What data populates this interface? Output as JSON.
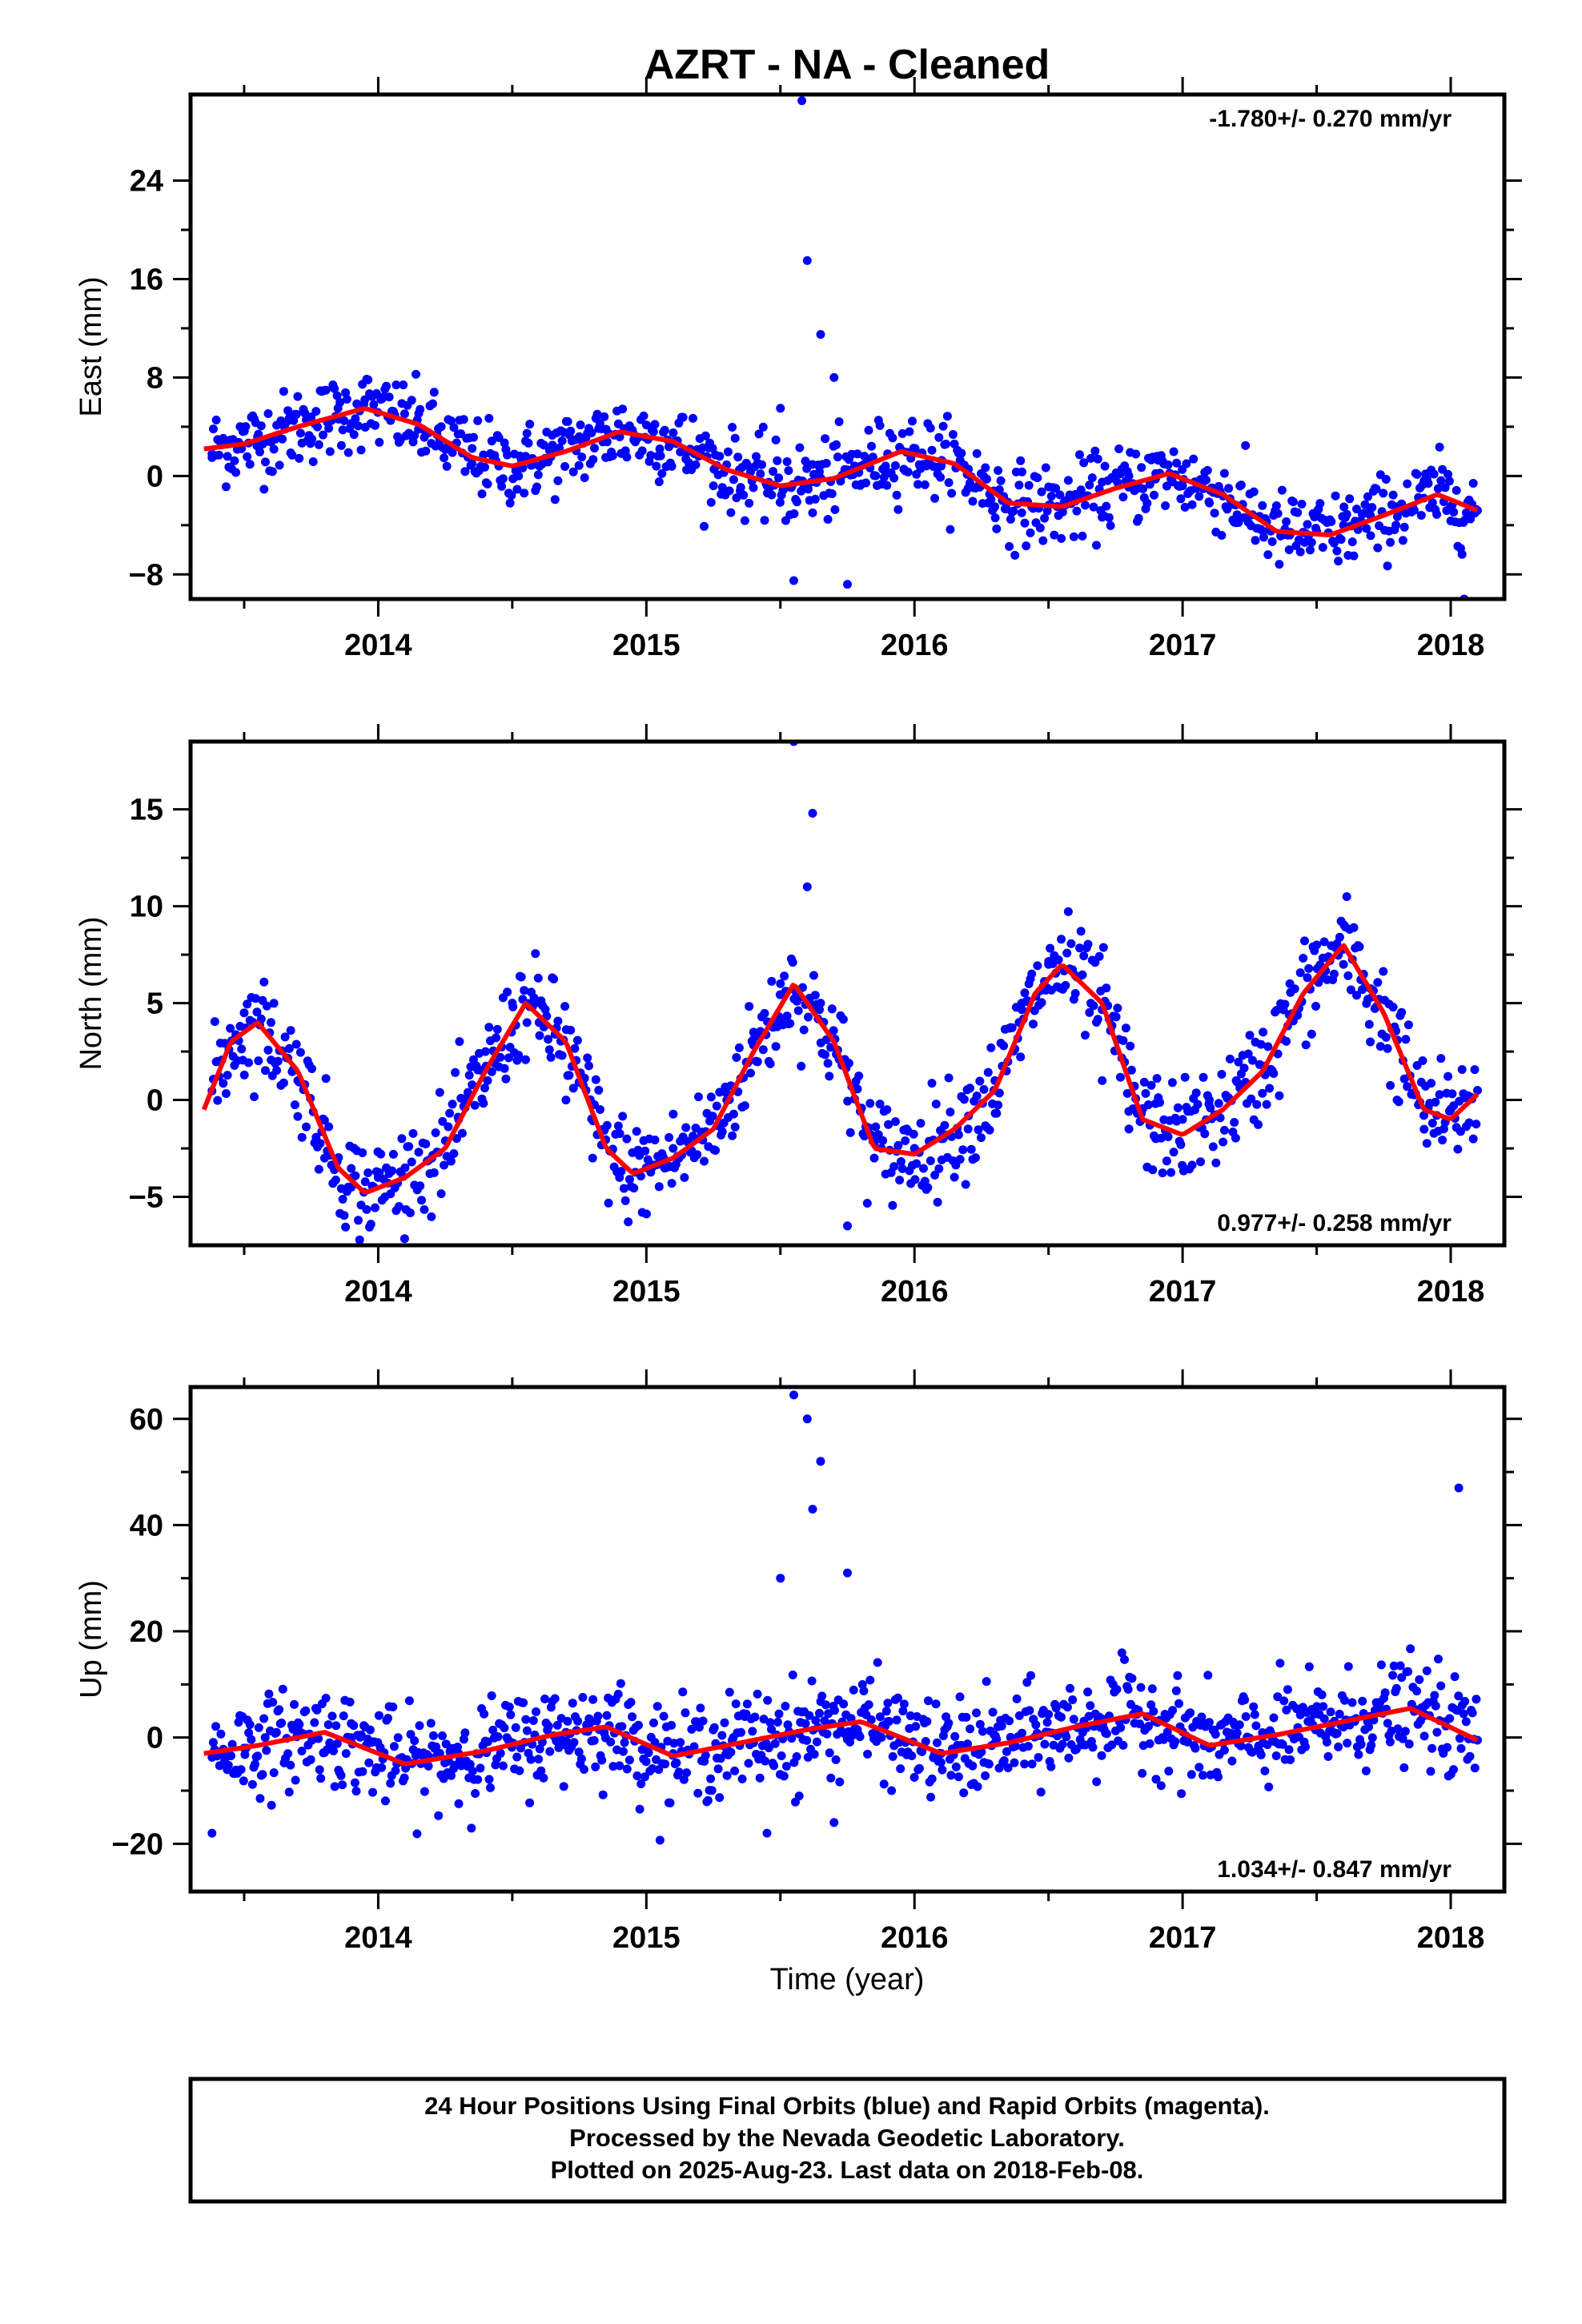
{
  "title": "AZRT  - NA - Cleaned",
  "xlabel": "Time (year)",
  "colors": {
    "points": "#0000ff",
    "fit": "#ff0000",
    "frame": "#000000"
  },
  "footer": {
    "line1": "24 Hour Positions Using Final Orbits (blue) and Rapid Orbits (magenta).",
    "line2": "Processed by the Nevada Geodetic Laboratory.",
    "line3": "Plotted on 2025-Aug-23. Last data on 2018-Feb-08."
  },
  "chart_data": [
    {
      "type": "scatter",
      "ylabel": "East (mm)",
      "rate_label": "-1.780+/- 0.270 mm/yr",
      "rate_position": "top-right",
      "xlim": [
        2013.3,
        2018.2
      ],
      "ylim": [
        -10,
        31
      ],
      "xticks": [
        2014,
        2015,
        2016,
        2017,
        2018
      ],
      "xtick_labels": [
        "2014",
        "2015",
        "2016",
        "2017",
        "2018"
      ],
      "yticks": [
        -8,
        0,
        8,
        16,
        24
      ],
      "ytick_labels": [
        "−8",
        "0",
        "8",
        "16",
        "24"
      ],
      "series": [
        {
          "name": "Final Orbits",
          "color": "#0000ff",
          "x": [
            2013.38,
            2013.45,
            2013.55,
            2013.65,
            2013.75,
            2013.85,
            2013.95,
            2014.05,
            2014.15,
            2014.25,
            2014.35,
            2014.45,
            2014.55,
            2014.65,
            2014.75,
            2014.85,
            2014.95,
            2015.05,
            2015.15,
            2015.25,
            2015.35,
            2015.45,
            2015.5,
            2015.55,
            2015.58,
            2015.6,
            2015.62,
            2015.65,
            2015.7,
            2015.75,
            2015.8,
            2015.9,
            2016.0,
            2016.1,
            2016.2,
            2016.3,
            2016.4,
            2016.5,
            2016.6,
            2016.7,
            2016.8,
            2016.9,
            2017.0,
            2017.1,
            2017.2,
            2017.3,
            2017.4,
            2017.5,
            2017.6,
            2017.7,
            2017.8,
            2017.9,
            2018.0,
            2018.05,
            2018.1
          ],
          "y": [
            1.5,
            2.8,
            3.2,
            4.0,
            4.8,
            5.5,
            6.2,
            5.0,
            3.8,
            2.2,
            1.0,
            0.8,
            1.6,
            2.5,
            3.2,
            3.8,
            3.5,
            2.2,
            0.5,
            -0.8,
            -1.2,
            -0.8,
            5.5,
            -8.5,
            30.5,
            17.5,
            -3.0,
            11.5,
            8.0,
            -8.8,
            0.8,
            1.8,
            2.2,
            0.8,
            -1.0,
            -2.5,
            -3.0,
            -2.4,
            -1.5,
            -0.5,
            0.0,
            0.2,
            -0.8,
            -2.2,
            -3.8,
            -4.5,
            -4.8,
            -4.5,
            -4.0,
            -3.2,
            -2.5,
            -1.8,
            -2.5,
            -10.0,
            -2.8
          ]
        }
      ],
      "fit": {
        "name": "Model",
        "color": "#ff0000",
        "x": [
          2013.35,
          2013.5,
          2013.7,
          2013.95,
          2014.15,
          2014.35,
          2014.5,
          2014.7,
          2014.9,
          2015.1,
          2015.3,
          2015.5,
          2015.7,
          2015.95,
          2016.15,
          2016.35,
          2016.55,
          2016.75,
          2016.95,
          2017.15,
          2017.35,
          2017.55,
          2017.75,
          2017.95,
          2018.1
        ],
        "y": [
          2.2,
          2.6,
          4.0,
          5.5,
          4.2,
          1.5,
          0.8,
          2.0,
          3.6,
          2.8,
          0.5,
          -0.8,
          -0.2,
          2.0,
          1.0,
          -2.2,
          -2.5,
          -1.0,
          0.2,
          -1.5,
          -4.5,
          -4.8,
          -3.2,
          -1.5,
          -2.8
        ]
      },
      "band": {
        "center": [
          2.2,
          2.6,
          4.0,
          5.5,
          4.2,
          1.5,
          0.8,
          2.0,
          3.6,
          2.8,
          0.5,
          -0.8,
          -0.2,
          2.0,
          1.0,
          -2.2,
          -2.5,
          -1.0,
          0.2,
          -1.5,
          -4.5,
          -4.8,
          -3.2,
          -1.5,
          -2.8
        ],
        "noise": 1.6,
        "count": 900
      }
    },
    {
      "type": "scatter",
      "ylabel": "North (mm)",
      "rate_label": "0.977+/- 0.258 mm/yr",
      "rate_position": "bottom-right",
      "xlim": [
        2013.3,
        2018.2
      ],
      "ylim": [
        -7.5,
        18.5
      ],
      "xticks": [
        2014,
        2015,
        2016,
        2017,
        2018
      ],
      "xtick_labels": [
        "2014",
        "2015",
        "2016",
        "2017",
        "2018"
      ],
      "yticks": [
        -5,
        0,
        5,
        10,
        15
      ],
      "ytick_labels": [
        "−5",
        "0",
        "5",
        "10",
        "15"
      ],
      "series": [
        {
          "name": "Final Orbits",
          "color": "#0000ff",
          "x": [
            2013.4,
            2013.5,
            2013.6,
            2013.7,
            2013.8,
            2013.9,
            2014.0,
            2014.1,
            2014.2,
            2014.3,
            2014.4,
            2014.5,
            2014.6,
            2014.7,
            2014.8,
            2014.9,
            2015.0,
            2015.1,
            2015.2,
            2015.3,
            2015.4,
            2015.5,
            2015.55,
            2015.6,
            2015.62,
            2015.65,
            2015.75,
            2015.85,
            2016.0,
            2016.1,
            2016.2,
            2016.3,
            2016.4,
            2016.5,
            2016.6,
            2016.7,
            2016.8,
            2016.9,
            2017.0,
            2017.1,
            2017.2,
            2017.3,
            2017.4,
            2017.5,
            2017.6,
            2017.7,
            2017.8,
            2017.9,
            2018.0,
            2018.1
          ],
          "y": [
            2.0,
            4.5,
            4.0,
            1.0,
            -3.0,
            -4.5,
            -4.0,
            -3.5,
            -3.0,
            -1.0,
            2.5,
            5.0,
            4.0,
            0.0,
            -3.0,
            -4.0,
            -3.5,
            -2.5,
            -2.0,
            0.0,
            3.5,
            6.0,
            18.5,
            11.0,
            14.8,
            5.0,
            -6.5,
            -3.0,
            -2.5,
            -2.0,
            -1.5,
            1.0,
            5.0,
            7.0,
            5.5,
            1.0,
            -1.5,
            -2.0,
            -1.0,
            0.0,
            1.0,
            3.5,
            6.0,
            8.0,
            7.0,
            3.0,
            0.0,
            -0.8,
            -0.5,
            0.5
          ]
        }
      ],
      "fit": {
        "name": "Model",
        "color": "#ff0000",
        "x": [
          2013.35,
          2013.45,
          2013.55,
          2013.7,
          2013.85,
          2013.95,
          2014.1,
          2014.25,
          2014.4,
          2014.55,
          2014.7,
          2014.85,
          2014.95,
          2015.1,
          2015.25,
          2015.4,
          2015.55,
          2015.7,
          2015.85,
          2016.0,
          2016.15,
          2016.3,
          2016.45,
          2016.55,
          2016.7,
          2016.85,
          2017.0,
          2017.15,
          2017.3,
          2017.45,
          2017.6,
          2017.75,
          2017.9,
          2018.0,
          2018.1
        ],
        "y": [
          -0.5,
          3.0,
          4.0,
          1.5,
          -3.5,
          -4.8,
          -4.0,
          -2.5,
          1.5,
          5.0,
          3.0,
          -2.5,
          -3.8,
          -3.0,
          -1.5,
          2.5,
          6.0,
          3.0,
          -2.5,
          -2.8,
          -1.5,
          0.5,
          5.5,
          7.0,
          5.0,
          -1.0,
          -1.8,
          -0.5,
          1.5,
          5.5,
          8.0,
          4.5,
          -0.5,
          -1.0,
          0.3
        ]
      },
      "band": {
        "noise": 1.3,
        "count": 900
      }
    },
    {
      "type": "scatter",
      "ylabel": "Up (mm)",
      "rate_label": "1.034+/- 0.847 mm/yr",
      "rate_position": "bottom-right",
      "xlim": [
        2013.3,
        2018.2
      ],
      "ylim": [
        -29,
        66
      ],
      "xticks": [
        2014,
        2015,
        2016,
        2017,
        2018
      ],
      "xtick_labels": [
        "2014",
        "2015",
        "2016",
        "2017",
        "2018"
      ],
      "yticks": [
        -20,
        0,
        20,
        40,
        60
      ],
      "ytick_labels": [
        "−20",
        "0",
        "20",
        "40",
        "60"
      ],
      "series": [
        {
          "name": "Final Orbits",
          "color": "#0000ff",
          "x": [
            2013.38,
            2013.5,
            2013.7,
            2013.9,
            2014.1,
            2014.3,
            2014.5,
            2014.7,
            2014.9,
            2015.1,
            2015.3,
            2015.45,
            2015.5,
            2015.55,
            2015.57,
            2015.6,
            2015.62,
            2015.65,
            2015.7,
            2015.75,
            2015.9,
            2016.1,
            2016.3,
            2016.5,
            2016.7,
            2016.9,
            2017.1,
            2017.3,
            2017.5,
            2017.7,
            2017.9,
            2018.03,
            2018.1
          ],
          "y": [
            -18.0,
            -2.0,
            1.0,
            0.0,
            -5.0,
            -3.0,
            -1.0,
            1.0,
            2.0,
            -3.0,
            -2.0,
            -18.0,
            30.0,
            64.5,
            -11.0,
            60.0,
            43.0,
            52.0,
            -16.0,
            31.0,
            3.0,
            -3.0,
            -1.0,
            1.0,
            3.5,
            3.0,
            -2.0,
            -1.0,
            1.5,
            4.0,
            4.5,
            47.0,
            -0.5
          ]
        }
      ],
      "fit": {
        "name": "Model",
        "color": "#ff0000",
        "x": [
          2013.35,
          2013.55,
          2013.8,
          2014.1,
          2014.4,
          2014.65,
          2014.85,
          2015.1,
          2015.35,
          2015.6,
          2015.8,
          2016.1,
          2016.35,
          2016.6,
          2016.85,
          2017.1,
          2017.35,
          2017.6,
          2017.85,
          2018.1
        ],
        "y": [
          -3.0,
          -1.5,
          1.0,
          -5.0,
          -2.5,
          0.5,
          2.0,
          -3.5,
          -1.0,
          1.5,
          3.0,
          -3.0,
          -1.0,
          2.0,
          4.5,
          -1.5,
          0.5,
          3.0,
          5.5,
          -0.5
        ]
      },
      "band": {
        "noise": 4.5,
        "count": 1000
      }
    }
  ]
}
